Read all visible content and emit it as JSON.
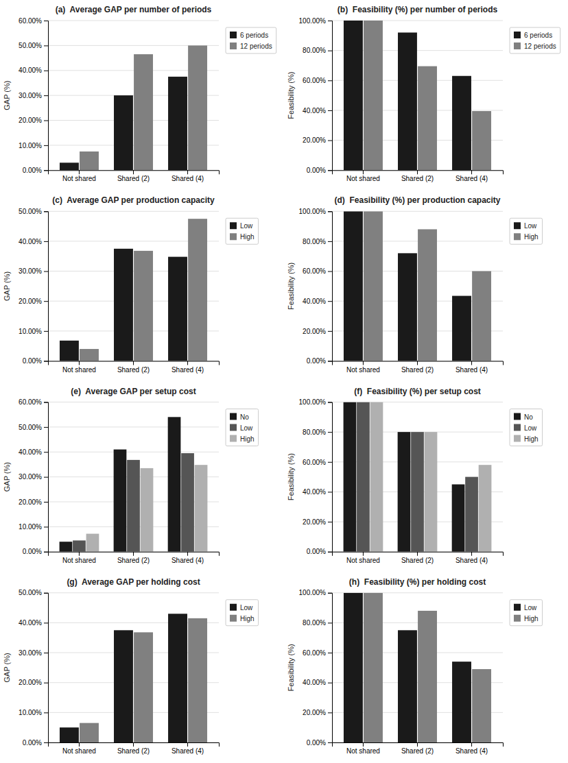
{
  "chart_data": [
    {
      "type": "bar",
      "title": "(a)  Average GAP per number of periods",
      "ylabel": "GAP (%)",
      "categories": [
        "Not shared",
        "Shared (2)",
        "Shared (4)"
      ],
      "series": [
        {
          "name": "6 periods",
          "color": "#1a1a1a",
          "values": [
            0.03,
            0.3,
            0.375
          ]
        },
        {
          "name": "12 periods",
          "color": "#808080",
          "values": [
            0.075,
            0.465,
            0.5
          ]
        }
      ],
      "ylim": [
        0,
        0.6
      ],
      "yticks": [
        {
          "value": 0.0,
          "label": "0.00%"
        },
        {
          "value": 0.1,
          "label": "10.00%"
        },
        {
          "value": 0.2,
          "label": "20.00%"
        },
        {
          "value": 0.3,
          "label": "30.00%"
        },
        {
          "value": 0.4,
          "label": "40.00%"
        },
        {
          "value": 0.5,
          "label": "50.00%"
        },
        {
          "value": 0.6,
          "label": "60.00%"
        }
      ],
      "grid": true,
      "legend": "right"
    },
    {
      "type": "bar",
      "title": "(b)  Feasibility (%) per number of periods",
      "ylabel": "Feasibility (%)",
      "categories": [
        "Not shared",
        "Shared (2)",
        "Shared (4)"
      ],
      "series": [
        {
          "name": "6 periods",
          "color": "#1a1a1a",
          "values": [
            1.0,
            0.92,
            0.63
          ]
        },
        {
          "name": "12 periods",
          "color": "#808080",
          "values": [
            1.0,
            0.695,
            0.395
          ]
        }
      ],
      "ylim": [
        0,
        1.0
      ],
      "yticks": [
        {
          "value": 0.0,
          "label": "0.00%"
        },
        {
          "value": 0.2,
          "label": "20.00%"
        },
        {
          "value": 0.4,
          "label": "40.00%"
        },
        {
          "value": 0.6,
          "label": "60.00%"
        },
        {
          "value": 0.8,
          "label": "80.00%"
        },
        {
          "value": 1.0,
          "label": "100.00%"
        }
      ],
      "grid": true,
      "legend": "right"
    },
    {
      "type": "bar",
      "title": "(c)  Average GAP per production capacity",
      "ylabel": "GAP (%)",
      "categories": [
        "Not shared",
        "Shared (2)",
        "Shared (4)"
      ],
      "series": [
        {
          "name": "Low",
          "color": "#1a1a1a",
          "values": [
            0.068,
            0.375,
            0.348
          ]
        },
        {
          "name": "High",
          "color": "#808080",
          "values": [
            0.04,
            0.368,
            0.475
          ]
        }
      ],
      "ylim": [
        0,
        0.5
      ],
      "yticks": [
        {
          "value": 0.0,
          "label": "0.00%"
        },
        {
          "value": 0.1,
          "label": "10.00%"
        },
        {
          "value": 0.2,
          "label": "20.00%"
        },
        {
          "value": 0.3,
          "label": "30.00%"
        },
        {
          "value": 0.4,
          "label": "40.00%"
        },
        {
          "value": 0.5,
          "label": "50.00%"
        }
      ],
      "grid": true,
      "legend": "right"
    },
    {
      "type": "bar",
      "title": "(d)  Feasibility (%) per production capacity",
      "ylabel": "Feasibility (%)",
      "categories": [
        "Not shared",
        "Shared (2)",
        "Shared (4)"
      ],
      "series": [
        {
          "name": "Low",
          "color": "#1a1a1a",
          "values": [
            1.0,
            0.72,
            0.435
          ]
        },
        {
          "name": "High",
          "color": "#808080",
          "values": [
            1.0,
            0.88,
            0.6
          ]
        }
      ],
      "ylim": [
        0,
        1.0
      ],
      "yticks": [
        {
          "value": 0.0,
          "label": "0.00%"
        },
        {
          "value": 0.2,
          "label": "20.00%"
        },
        {
          "value": 0.4,
          "label": "40.00%"
        },
        {
          "value": 0.6,
          "label": "60.00%"
        },
        {
          "value": 0.8,
          "label": "80.00%"
        },
        {
          "value": 1.0,
          "label": "100.00%"
        }
      ],
      "grid": true,
      "legend": "right"
    },
    {
      "type": "bar",
      "title": "(e)  Average GAP per setup cost",
      "ylabel": "GAP (%)",
      "categories": [
        "Not shared",
        "Shared (2)",
        "Shared (4)"
      ],
      "series": [
        {
          "name": "No",
          "color": "#1a1a1a",
          "values": [
            0.04,
            0.41,
            0.54
          ]
        },
        {
          "name": "Low",
          "color": "#555555",
          "values": [
            0.045,
            0.368,
            0.395
          ]
        },
        {
          "name": "High",
          "color": "#b0b0b0",
          "values": [
            0.072,
            0.335,
            0.348
          ]
        }
      ],
      "ylim": [
        0,
        0.6
      ],
      "yticks": [
        {
          "value": 0.0,
          "label": "0.00%"
        },
        {
          "value": 0.1,
          "label": "10.00%"
        },
        {
          "value": 0.2,
          "label": "20.00%"
        },
        {
          "value": 0.3,
          "label": "30.00%"
        },
        {
          "value": 0.4,
          "label": "40.00%"
        },
        {
          "value": 0.5,
          "label": "50.00%"
        },
        {
          "value": 0.6,
          "label": "60.00%"
        }
      ],
      "grid": true,
      "legend": "right"
    },
    {
      "type": "bar",
      "title": "(f)  Feasibility (%) per setup cost",
      "ylabel": "Feasibility (%)",
      "categories": [
        "Not shared",
        "Shared (2)",
        "Shared (4)"
      ],
      "series": [
        {
          "name": "No",
          "color": "#1a1a1a",
          "values": [
            1.0,
            0.8,
            0.45
          ]
        },
        {
          "name": "Low",
          "color": "#555555",
          "values": [
            1.0,
            0.8,
            0.5
          ]
        },
        {
          "name": "High",
          "color": "#b0b0b0",
          "values": [
            1.0,
            0.8,
            0.58
          ]
        }
      ],
      "ylim": [
        0,
        1.0
      ],
      "yticks": [
        {
          "value": 0.0,
          "label": "0.00%"
        },
        {
          "value": 0.2,
          "label": "20.00%"
        },
        {
          "value": 0.4,
          "label": "40.00%"
        },
        {
          "value": 0.6,
          "label": "60.00%"
        },
        {
          "value": 0.8,
          "label": "80.00%"
        },
        {
          "value": 1.0,
          "label": "100.00%"
        }
      ],
      "grid": true,
      "legend": "right"
    },
    {
      "type": "bar",
      "title": "(g)  Average GAP per holding cost",
      "ylabel": "GAP (%)",
      "categories": [
        "Not shared",
        "Shared (2)",
        "Shared (4)"
      ],
      "series": [
        {
          "name": "Low",
          "color": "#1a1a1a",
          "values": [
            0.05,
            0.375,
            0.43
          ]
        },
        {
          "name": "High",
          "color": "#808080",
          "values": [
            0.065,
            0.368,
            0.415
          ]
        }
      ],
      "ylim": [
        0,
        0.5
      ],
      "yticks": [
        {
          "value": 0.0,
          "label": "0.00%"
        },
        {
          "value": 0.1,
          "label": "10.00%"
        },
        {
          "value": 0.2,
          "label": "20.00%"
        },
        {
          "value": 0.3,
          "label": "30.00%"
        },
        {
          "value": 0.4,
          "label": "40.00%"
        },
        {
          "value": 0.5,
          "label": "50.00%"
        }
      ],
      "grid": true,
      "legend": "right"
    },
    {
      "type": "bar",
      "title": "(h)  Feasibility (%) per holding cost",
      "ylabel": "Feasibility (%)",
      "categories": [
        "Not shared",
        "Shared (2)",
        "Shared (4)"
      ],
      "series": [
        {
          "name": "Low",
          "color": "#1a1a1a",
          "values": [
            1.0,
            0.75,
            0.54
          ]
        },
        {
          "name": "High",
          "color": "#808080",
          "values": [
            1.0,
            0.88,
            0.49
          ]
        }
      ],
      "ylim": [
        0,
        1.0
      ],
      "yticks": [
        {
          "value": 0.0,
          "label": "0.00%"
        },
        {
          "value": 0.2,
          "label": "20.00%"
        },
        {
          "value": 0.4,
          "label": "40.00%"
        },
        {
          "value": 0.6,
          "label": "60.00%"
        },
        {
          "value": 0.8,
          "label": "80.00%"
        },
        {
          "value": 1.0,
          "label": "100.00%"
        }
      ],
      "grid": true,
      "legend": "right"
    }
  ]
}
